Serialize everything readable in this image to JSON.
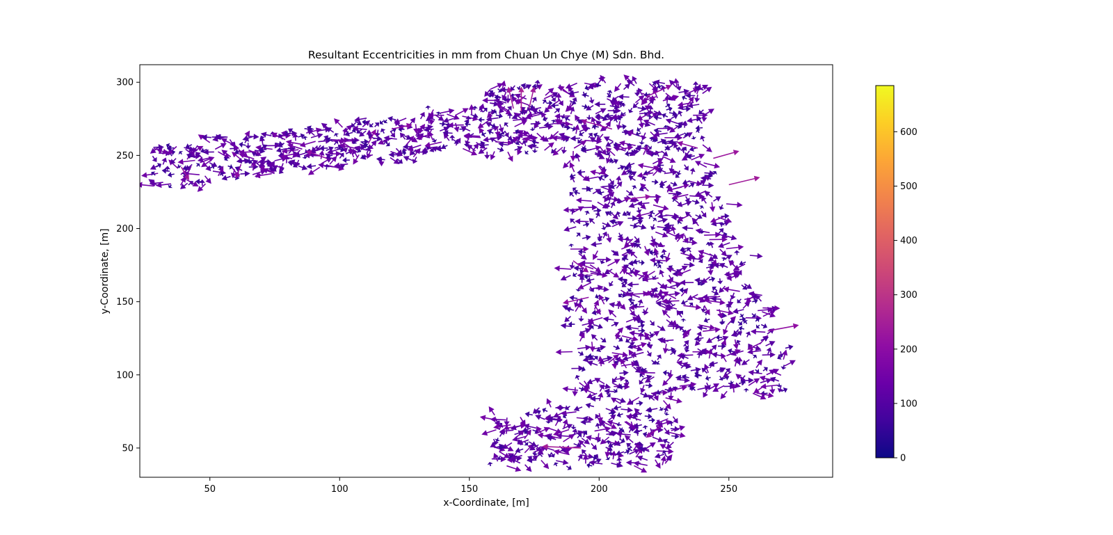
{
  "chart_data": {
    "type": "quiver",
    "title": "Resultant Eccentricities in mm from Chuan Un Chye (M) Sdn. Bhd.",
    "xlabel": "x-Coordinate, [m]",
    "ylabel": "y-Coordinate, [m]",
    "xlim": [
      23,
      290
    ],
    "ylim": [
      30,
      312
    ],
    "xticks": [
      50,
      100,
      150,
      200,
      250
    ],
    "yticks": [
      50,
      100,
      150,
      200,
      250,
      300
    ],
    "grid": false,
    "colormap": "plasma",
    "colorbar": {
      "min": 0,
      "max": 685,
      "ticks": [
        0,
        100,
        200,
        300,
        400,
        500,
        600
      ]
    },
    "colorbar_ticks": [
      "0",
      "100",
      "200",
      "300",
      "400",
      "500",
      "600"
    ],
    "region_density": [
      {
        "name": "upper-left arm",
        "x_range": [
          30,
          160
        ],
        "y_range": [
          225,
          295
        ],
        "spacing_m": [
          5.5,
          6
        ]
      },
      {
        "name": "top block",
        "x_range": [
          160,
          240
        ],
        "y_range": [
          255,
          300
        ],
        "spacing_m": [
          6,
          6
        ]
      },
      {
        "name": "right strip",
        "x_range": [
          185,
          275
        ],
        "y_range": [
          90,
          255
        ],
        "spacing_m": [
          7,
          7
        ]
      },
      {
        "name": "bottom arm",
        "x_range": [
          160,
          230
        ],
        "y_range": [
          40,
          90
        ],
        "spacing_m": [
          6,
          6
        ]
      }
    ],
    "vectors_note": "Several hundred arrows; magnitudes mostly 50-150 mm, some outliers up to ~250 mm",
    "outlier_vectors": [
      {
        "x": 193,
        "y": 50,
        "dx": -15,
        "dy": 1,
        "mag": 250
      },
      {
        "x": 39,
        "y": 242,
        "dx": 3,
        "dy": -9,
        "mag": 230
      },
      {
        "x": 95,
        "y": 248,
        "dx": -8,
        "dy": 5,
        "mag": 210
      },
      {
        "x": 111,
        "y": 258,
        "dx": 3,
        "dy": 10,
        "mag": 200
      },
      {
        "x": 62,
        "y": 244,
        "dx": -2,
        "dy": -10,
        "mag": 200
      },
      {
        "x": 170,
        "y": 280,
        "dx": 0,
        "dy": 17,
        "mag": 260
      },
      {
        "x": 167,
        "y": 282,
        "dx": -2,
        "dy": 15,
        "mag": 240
      },
      {
        "x": 173,
        "y": 282,
        "dx": 2,
        "dy": 15,
        "mag": 240
      },
      {
        "x": 210,
        "y": 220,
        "dx": 10,
        "dy": 2,
        "mag": 220
      },
      {
        "x": 196,
        "y": 153,
        "dx": -10,
        "dy": -4,
        "mag": 210
      },
      {
        "x": 250,
        "y": 230,
        "dx": 12,
        "dy": 5,
        "mag": 240
      },
      {
        "x": 244,
        "y": 248,
        "dx": 10,
        "dy": 5,
        "mag": 230
      },
      {
        "x": 224,
        "y": 65,
        "dx": -6,
        "dy": -8,
        "mag": 200
      },
      {
        "x": 265,
        "y": 130,
        "dx": 12,
        "dy": 4,
        "mag": 210
      },
      {
        "x": 238,
        "y": 255,
        "dx": -8,
        "dy": 4,
        "mag": 200
      },
      {
        "x": 120,
        "y": 268,
        "dx": 8,
        "dy": 3,
        "mag": 200
      },
      {
        "x": 190,
        "y": 178,
        "dx": 6,
        "dy": -8,
        "mag": 210
      },
      {
        "x": 218,
        "y": 290,
        "dx": 10,
        "dy": 8,
        "mag": 210
      },
      {
        "x": 205,
        "y": 268,
        "dx": -12,
        "dy": 6,
        "mag": 220
      }
    ]
  }
}
